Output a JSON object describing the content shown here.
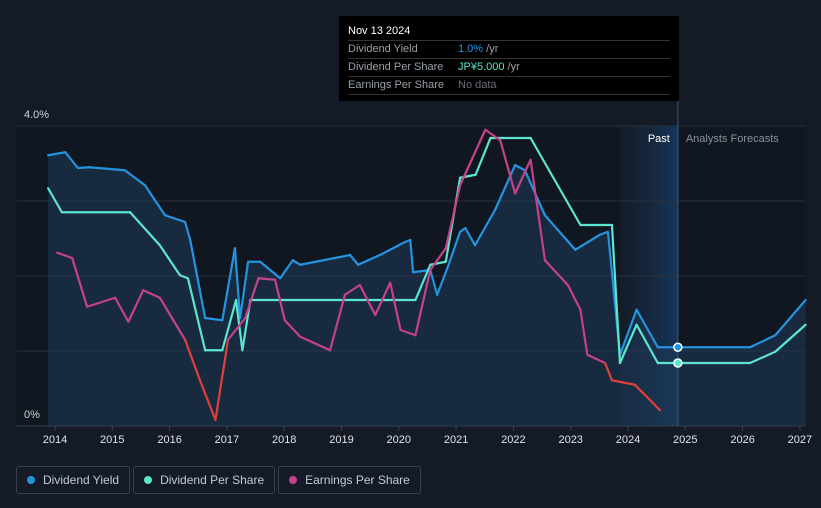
{
  "tooltip": {
    "date": "Nov 13 2024",
    "rows": [
      {
        "label": "Dividend Yield",
        "value": "1.0%",
        "unit": " /yr",
        "color": "#2394df"
      },
      {
        "label": "Dividend Per Share",
        "value": "JP¥5.000",
        "unit": " /yr",
        "color": "#5ce5cf"
      },
      {
        "label": "Earnings Per Share",
        "value": "No data",
        "unit": "",
        "color": "#6b7078"
      }
    ]
  },
  "chart_data": {
    "type": "line",
    "y_tick_labels": [
      "4.0%",
      "0%"
    ],
    "ylim": [
      0,
      4
    ],
    "xlim": [
      2013.7,
      2027.1
    ],
    "x_tick_labels": [
      "2014",
      "2015",
      "2016",
      "2017",
      "2018",
      "2019",
      "2020",
      "2021",
      "2022",
      "2023",
      "2024",
      "2025",
      "2026",
      "2027"
    ],
    "past_label": "Past",
    "forecast_label": "Analysts Forecasts",
    "past_region": [
      2023.86,
      2024.87
    ],
    "series": [
      {
        "name": "Dividend Yield",
        "color": "#2394df",
        "fill": true,
        "points": [
          [
            2013.88,
            3.61
          ],
          [
            2014.18,
            3.65
          ],
          [
            2014.4,
            3.44
          ],
          [
            2014.6,
            3.45
          ],
          [
            2015.22,
            3.41
          ],
          [
            2015.57,
            3.21
          ],
          [
            2015.92,
            2.81
          ],
          [
            2016.27,
            2.72
          ],
          [
            2016.36,
            2.48
          ],
          [
            2016.62,
            1.44
          ],
          [
            2016.92,
            1.41
          ],
          [
            2017.14,
            2.37
          ],
          [
            2017.23,
            1.44
          ],
          [
            2017.37,
            2.19
          ],
          [
            2017.58,
            2.19
          ],
          [
            2017.93,
            1.97
          ],
          [
            2018.15,
            2.21
          ],
          [
            2018.28,
            2.15
          ],
          [
            2019.15,
            2.28
          ],
          [
            2019.29,
            2.15
          ],
          [
            2019.67,
            2.28
          ],
          [
            2020.1,
            2.45
          ],
          [
            2020.2,
            2.48
          ],
          [
            2020.25,
            2.05
          ],
          [
            2020.55,
            2.08
          ],
          [
            2020.67,
            1.75
          ],
          [
            2020.85,
            2.11
          ],
          [
            2021.07,
            2.59
          ],
          [
            2021.16,
            2.64
          ],
          [
            2021.33,
            2.41
          ],
          [
            2021.68,
            2.88
          ],
          [
            2022.03,
            3.48
          ],
          [
            2022.2,
            3.41
          ],
          [
            2022.55,
            2.81
          ],
          [
            2023.08,
            2.35
          ],
          [
            2023.51,
            2.55
          ],
          [
            2023.65,
            2.59
          ],
          [
            2023.86,
            0.95
          ],
          [
            2024.15,
            1.55
          ],
          [
            2024.52,
            1.05
          ],
          [
            2024.87,
            1.05
          ],
          [
            2026.13,
            1.05
          ],
          [
            2026.57,
            1.21
          ],
          [
            2027.1,
            1.68
          ]
        ]
      },
      {
        "name": "Dividend Per Share",
        "color": "#5ce5cf",
        "fill": false,
        "points": [
          [
            2013.88,
            3.17
          ],
          [
            2014.12,
            2.85
          ],
          [
            2015.31,
            2.85
          ],
          [
            2015.83,
            2.41
          ],
          [
            2016.18,
            2.01
          ],
          [
            2016.32,
            1.97
          ],
          [
            2016.62,
            1.01
          ],
          [
            2016.92,
            1.01
          ],
          [
            2017.16,
            1.68
          ],
          [
            2017.27,
            1.01
          ],
          [
            2017.41,
            1.68
          ],
          [
            2020.29,
            1.68
          ],
          [
            2020.55,
            2.15
          ],
          [
            2020.82,
            2.19
          ],
          [
            2021.07,
            3.31
          ],
          [
            2021.34,
            3.35
          ],
          [
            2021.6,
            3.84
          ],
          [
            2022.3,
            3.84
          ],
          [
            2023.17,
            2.68
          ],
          [
            2023.72,
            2.68
          ],
          [
            2023.86,
            0.84
          ],
          [
            2024.15,
            1.35
          ],
          [
            2024.52,
            0.84
          ],
          [
            2026.13,
            0.84
          ],
          [
            2026.57,
            0.99
          ],
          [
            2027.1,
            1.35
          ]
        ]
      },
      {
        "name": "Earnings Per Share",
        "color": "#c5428a",
        "neg_color": "#e0403a",
        "neg_ranges": [
          [
            2016.2,
            2017.0
          ],
          [
            2023.6,
            2024.7
          ]
        ],
        "fill": false,
        "points": [
          [
            2014.04,
            2.31
          ],
          [
            2014.3,
            2.24
          ],
          [
            2014.56,
            1.59
          ],
          [
            2015.05,
            1.71
          ],
          [
            2015.28,
            1.39
          ],
          [
            2015.54,
            1.81
          ],
          [
            2015.83,
            1.71
          ],
          [
            2016.27,
            1.15
          ],
          [
            2016.53,
            0.61
          ],
          [
            2016.8,
            0.08
          ],
          [
            2017.02,
            1.15
          ],
          [
            2017.32,
            1.44
          ],
          [
            2017.55,
            1.97
          ],
          [
            2017.84,
            1.95
          ],
          [
            2018.01,
            1.41
          ],
          [
            2018.28,
            1.19
          ],
          [
            2018.8,
            1.01
          ],
          [
            2019.06,
            1.75
          ],
          [
            2019.32,
            1.88
          ],
          [
            2019.59,
            1.48
          ],
          [
            2019.85,
            1.91
          ],
          [
            2020.03,
            1.28
          ],
          [
            2020.29,
            1.21
          ],
          [
            2020.55,
            2.08
          ],
          [
            2020.82,
            2.37
          ],
          [
            2021.07,
            3.21
          ],
          [
            2021.51,
            3.95
          ],
          [
            2021.77,
            3.81
          ],
          [
            2022.03,
            3.1
          ],
          [
            2022.3,
            3.55
          ],
          [
            2022.55,
            2.21
          ],
          [
            2022.95,
            1.88
          ],
          [
            2023.17,
            1.55
          ],
          [
            2023.29,
            0.95
          ],
          [
            2023.6,
            0.84
          ],
          [
            2023.72,
            0.61
          ],
          [
            2024.12,
            0.55
          ],
          [
            2024.56,
            0.21
          ]
        ]
      }
    ],
    "markers": [
      {
        "series": "Dividend Yield",
        "x": 2024.87,
        "y": 1.05
      },
      {
        "series": "Dividend Per Share",
        "x": 2024.87,
        "y": 0.84
      }
    ]
  },
  "legend": [
    {
      "label": "Dividend Yield",
      "color": "#2394df"
    },
    {
      "label": "Dividend Per Share",
      "color": "#5ce5cf"
    },
    {
      "label": "Earnings Per Share",
      "color": "#c5428a"
    }
  ]
}
